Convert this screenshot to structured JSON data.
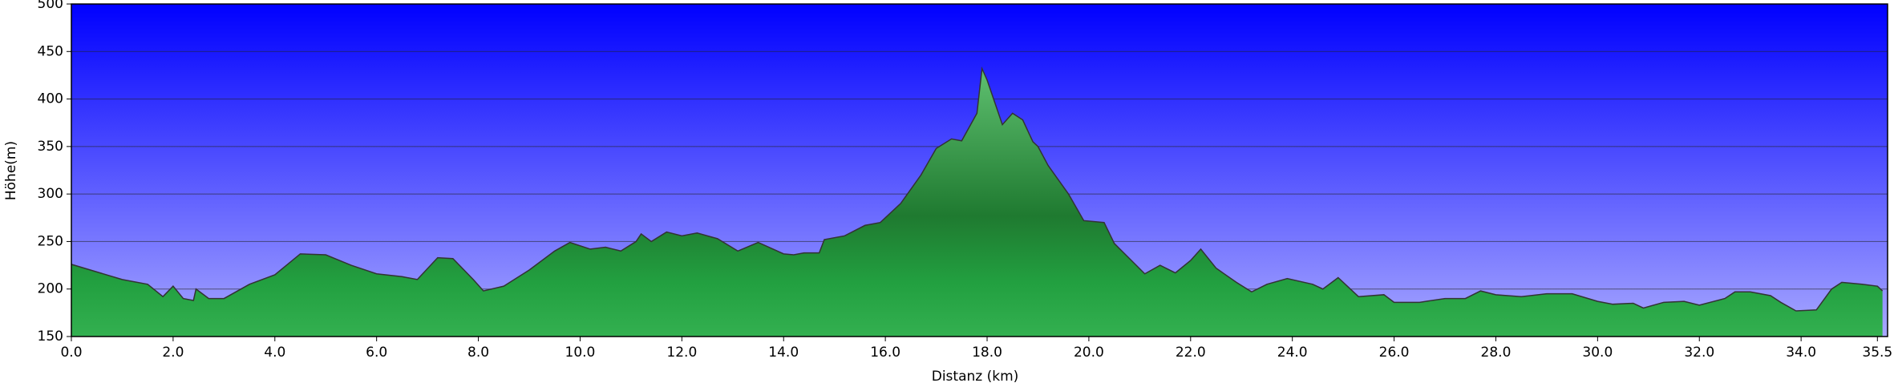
{
  "chart_data": {
    "type": "area",
    "xlabel": "Distanz   (km)",
    "ylabel": "Höhe(m)",
    "color": "#22a040",
    "line_color": "#333333",
    "background_top": "#0000ff",
    "background_bottom": "#a8a8ff",
    "grid": true,
    "xlim": [
      0,
      35.7
    ],
    "ylim": [
      150,
      500
    ],
    "xticks": [
      {
        "value": 0,
        "label": "0.0"
      },
      {
        "value": 2,
        "label": "2.0"
      },
      {
        "value": 4,
        "label": "4.0"
      },
      {
        "value": 6,
        "label": "6.0"
      },
      {
        "value": 8,
        "label": "8.0"
      },
      {
        "value": 10,
        "label": "10.0"
      },
      {
        "value": 12,
        "label": "12.0"
      },
      {
        "value": 14,
        "label": "14.0"
      },
      {
        "value": 16,
        "label": "16.0"
      },
      {
        "value": 18,
        "label": "18.0"
      },
      {
        "value": 20,
        "label": "20.0"
      },
      {
        "value": 22,
        "label": "22.0"
      },
      {
        "value": 24,
        "label": "24.0"
      },
      {
        "value": 26,
        "label": "26.0"
      },
      {
        "value": 28,
        "label": "28.0"
      },
      {
        "value": 30,
        "label": "30.0"
      },
      {
        "value": 32,
        "label": "32.0"
      },
      {
        "value": 34,
        "label": "34.0"
      },
      35.5
    ],
    "yticks": [
      150,
      200,
      250,
      300,
      350,
      400,
      450,
      500
    ],
    "x": [
      0.0,
      0.5,
      1.0,
      1.5,
      1.8,
      2.0,
      2.2,
      2.4,
      2.45,
      2.7,
      3.0,
      3.5,
      4.0,
      4.5,
      5.0,
      5.5,
      6.0,
      6.5,
      6.8,
      7.2,
      7.5,
      7.9,
      8.1,
      8.5,
      9.0,
      9.5,
      9.8,
      10.2,
      10.5,
      10.8,
      11.1,
      11.2,
      11.4,
      11.7,
      12.0,
      12.3,
      12.7,
      13.1,
      13.5,
      14.0,
      14.2,
      14.4,
      14.7,
      14.8,
      15.2,
      15.6,
      15.9,
      16.3,
      16.7,
      17.0,
      17.3,
      17.5,
      17.8,
      17.9,
      18.0,
      18.3,
      18.5,
      18.7,
      18.9,
      19.0,
      19.2,
      19.6,
      19.9,
      20.3,
      20.5,
      20.8,
      21.1,
      21.4,
      21.7,
      22.0,
      22.2,
      22.5,
      22.9,
      23.2,
      23.5,
      23.9,
      24.4,
      24.6,
      24.9,
      25.3,
      25.8,
      26.0,
      26.5,
      27.0,
      27.4,
      27.7,
      28.0,
      28.5,
      29.0,
      29.5,
      30.0,
      30.3,
      30.7,
      30.9,
      31.3,
      31.7,
      32.0,
      32.5,
      32.7,
      33.0,
      33.4,
      33.6,
      33.9,
      34.3,
      34.6,
      34.8,
      35.2,
      35.5,
      35.6
    ],
    "values": [
      226,
      218,
      210,
      205,
      192,
      203,
      190,
      188,
      200,
      190,
      190,
      205,
      215,
      237,
      236,
      225,
      216,
      213,
      210,
      233,
      232,
      210,
      198,
      203,
      220,
      240,
      249,
      242,
      244,
      240,
      250,
      258,
      250,
      260,
      256,
      259,
      253,
      240,
      249,
      237,
      236,
      238,
      238,
      252,
      256,
      267,
      270,
      290,
      320,
      348,
      358,
      356,
      385,
      432,
      420,
      373,
      385,
      378,
      355,
      350,
      330,
      300,
      272,
      270,
      248,
      232,
      216,
      225,
      217,
      230,
      242,
      222,
      207,
      197,
      205,
      211,
      205,
      200,
      212,
      192,
      194,
      186,
      186,
      190,
      190,
      198,
      194,
      192,
      195,
      195,
      187,
      184,
      185,
      180,
      186,
      187,
      183,
      190,
      197,
      197,
      193,
      186,
      177,
      178,
      200,
      207,
      205,
      203,
      198
    ]
  }
}
